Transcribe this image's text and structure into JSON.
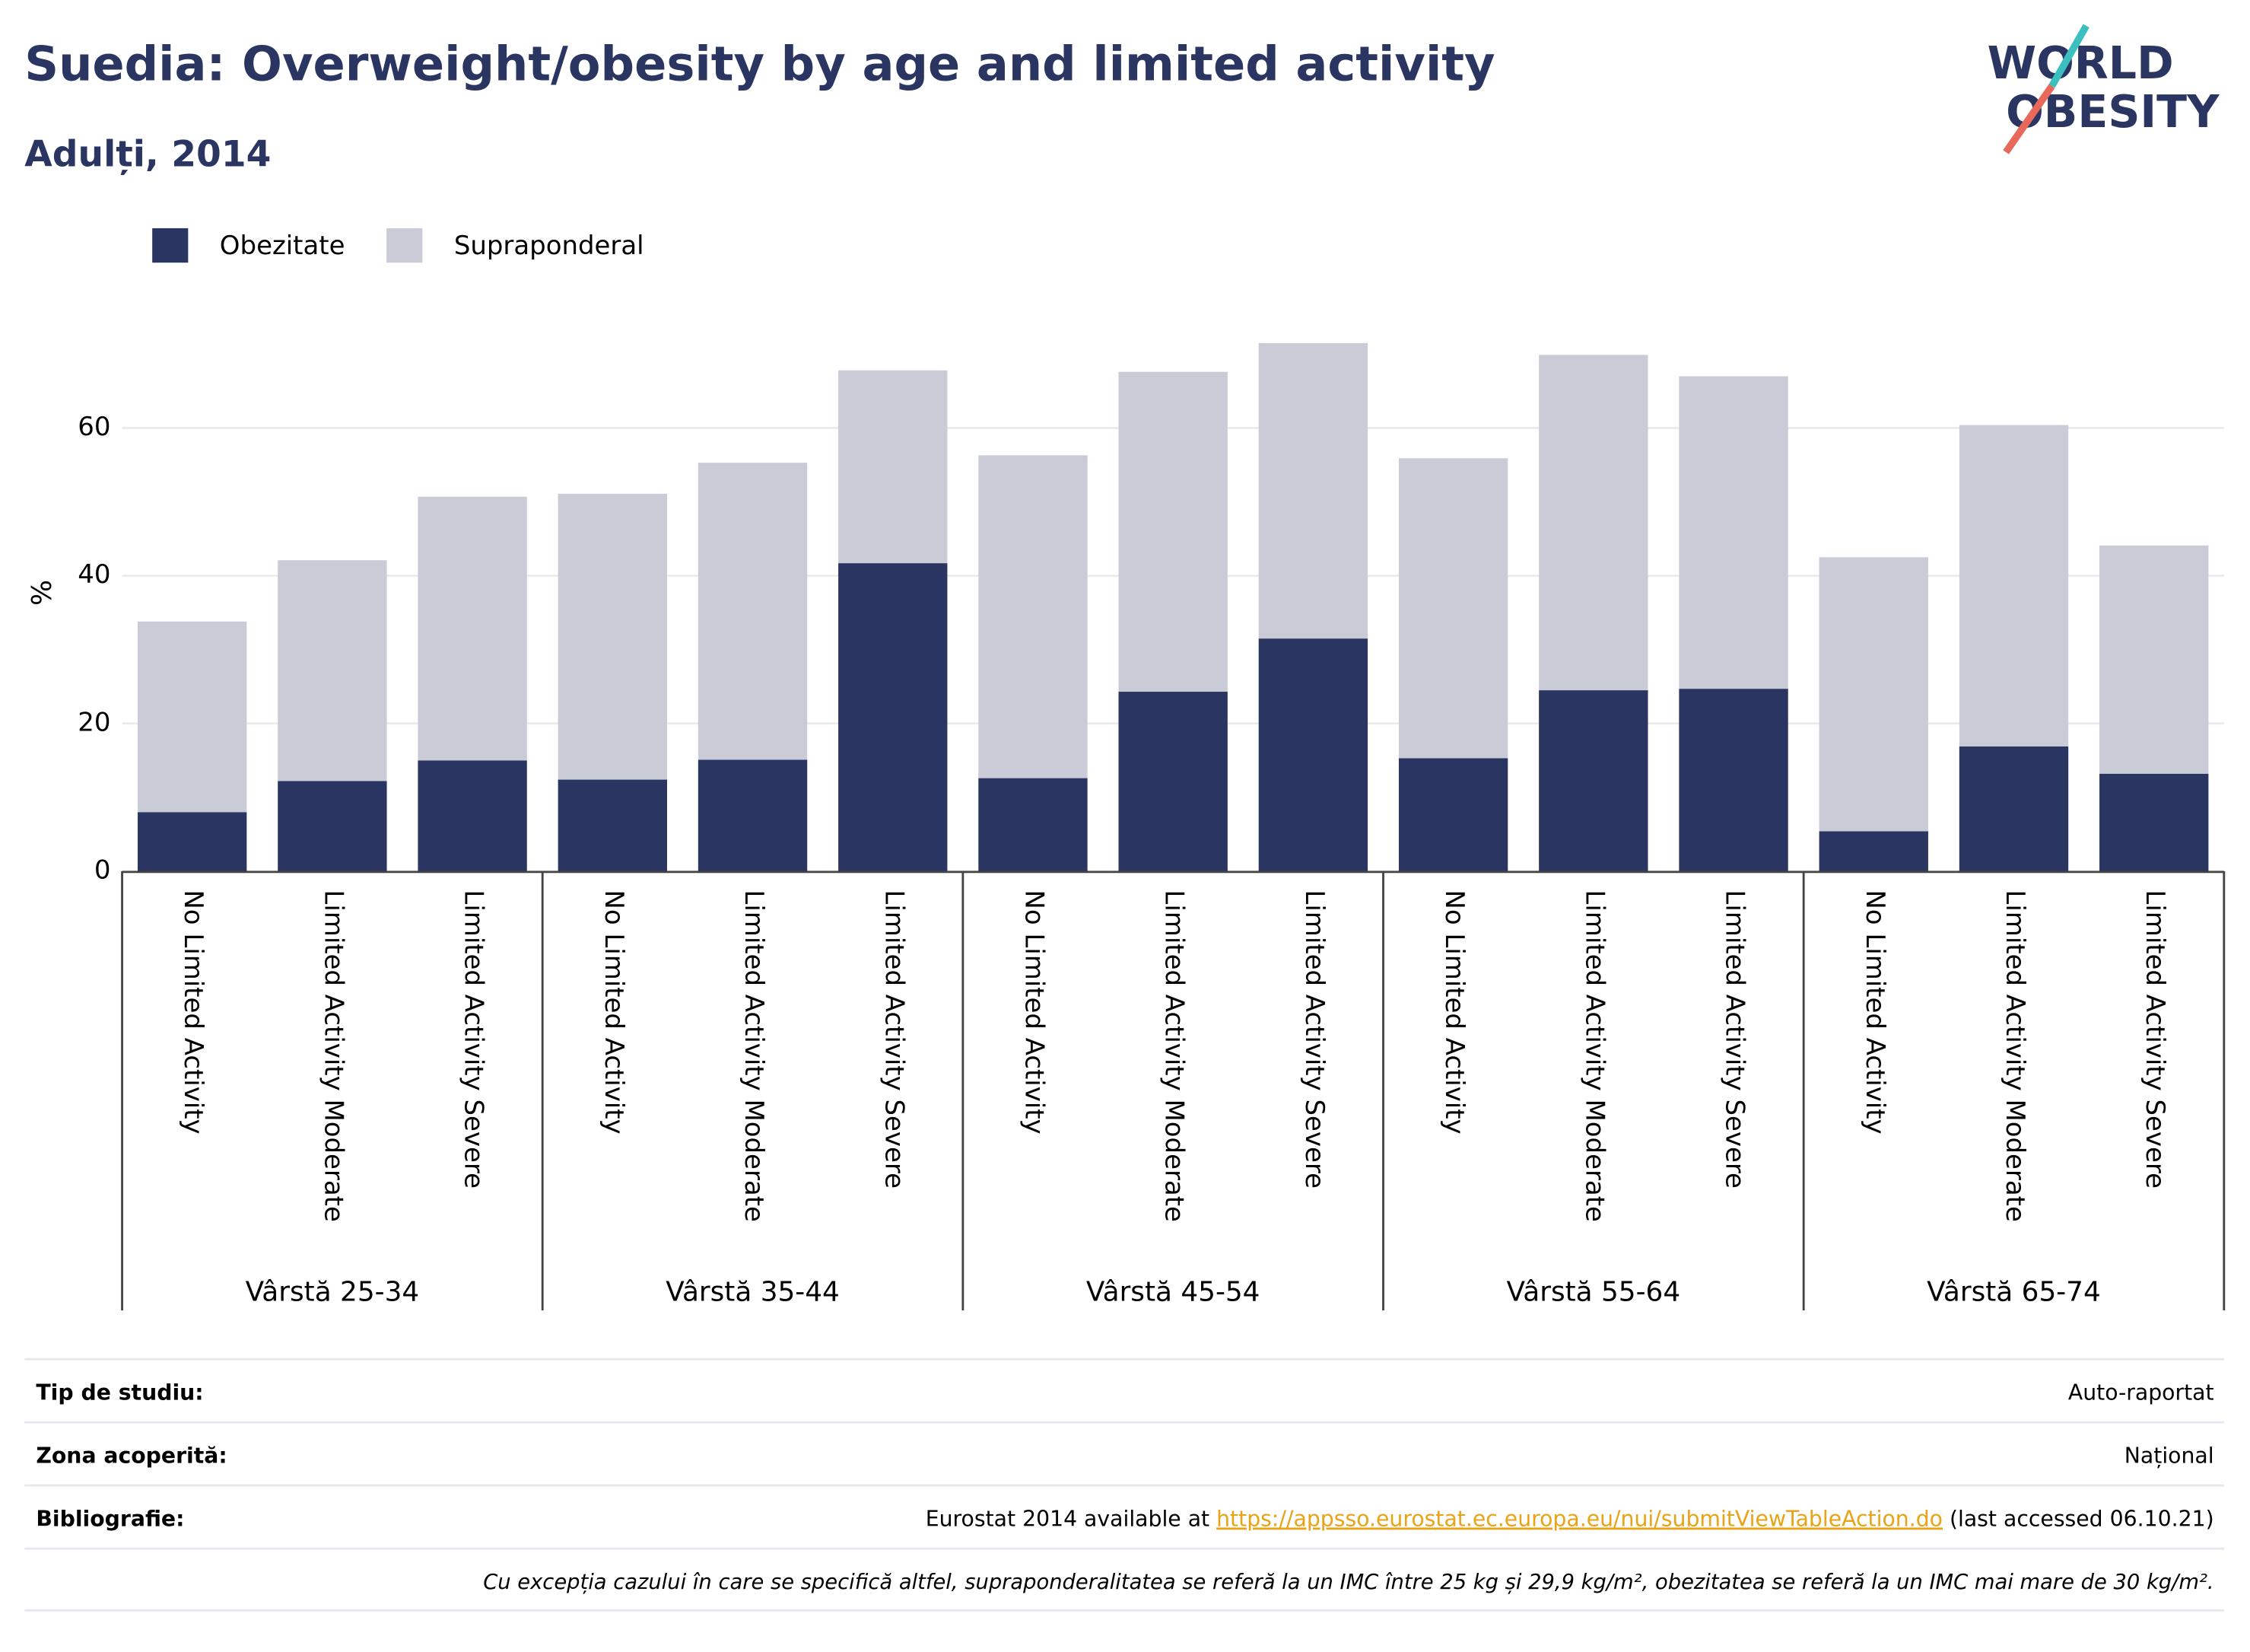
{
  "chart_data": {
    "type": "stacked_bar",
    "title": "Suedia: Overweight/obesity by age and limited activity",
    "subtitle": "Adulți, 2014",
    "y_label": "%",
    "categories": [
      "No Limited Activity",
      "Limited Activity Moderate",
      "Limited Activity Severe",
      "No Limited Activity",
      "Limited Activity Moderate",
      "Limited Activity Severe",
      "No Limited Activity",
      "Limited Activity Moderate",
      "Limited Activity Severe",
      "No Limited Activity",
      "Limited Activity Moderate",
      "Limited Activity Severe",
      "No Limited Activity",
      "Limited Activity Moderate",
      "Limited Activity Severe"
    ],
    "groups": [
      "Vârstă 25-34",
      "Vârstă 35-44",
      "Vârstă 45-54",
      "Vârstă 55-64",
      "Vârstă 65-74"
    ],
    "series": [
      {
        "name": "Obezitate",
        "color": "#2a3561",
        "values": [
          8.0,
          12.2,
          15.0,
          12.4,
          15.1,
          41.7,
          12.6,
          24.3,
          31.5,
          15.3,
          24.5,
          24.7,
          5.4,
          16.9,
          13.2
        ]
      },
      {
        "name": "Supraponderal",
        "color": "#c9cbd7",
        "values": [
          25.8,
          29.9,
          35.7,
          38.7,
          40.2,
          26.1,
          43.7,
          43.3,
          40.0,
          40.6,
          45.4,
          42.3,
          37.1,
          43.5,
          30.9
        ]
      }
    ],
    "ylim": [
      0,
      75
    ],
    "yticks": [
      0,
      20,
      40,
      60
    ],
    "grid": true,
    "legend": "top-left"
  },
  "logo": {
    "line1": "WORLD",
    "line2": "OBESITY"
  },
  "info": {
    "rows": [
      {
        "label": "Tip de studiu:",
        "value": "Auto-raportat"
      },
      {
        "label": "Zona acoperită:",
        "value": "Național"
      },
      {
        "label": "Bibliografie:",
        "before": "Eurostat 2014 available at ",
        "link": "https://appsso.eurostat.ec.europa.eu/nui/submitViewTableAction.do",
        "after": " (last accessed 06.10.21)"
      }
    ],
    "note": "Cu excepția cazului în care se specifică altfel, supraponderalitatea se referă la un IMC între 25 kg și 29,9 kg/m², obezitatea se referă la un IMC mai mare de 30 kg/m²."
  }
}
